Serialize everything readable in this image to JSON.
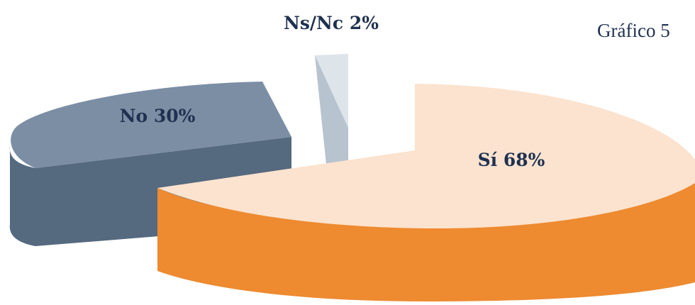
{
  "figure_label": "Gráfico 5",
  "colors": {
    "si_top": "#fbe3cf",
    "si_side": "#ee8a30",
    "no_top": "#7b8ea4",
    "no_side": "#55697f",
    "nsnc_top": "#dde4ea",
    "nsnc_side": "#b7c3cf",
    "label_text": "#1f3150"
  },
  "chart_data": {
    "type": "pie",
    "style": "3d-exploded",
    "title": "",
    "legend": "none",
    "slices": [
      {
        "category": "Sí",
        "value": 68,
        "label": "Sí 68%",
        "color": "#ee8a30"
      },
      {
        "category": "No",
        "value": 30,
        "label": "No 30%",
        "color": "#55697f"
      },
      {
        "category": "Ns/Nc",
        "value": 2,
        "label": "Ns/Nc 2%",
        "color": "#b7c3cf"
      }
    ]
  }
}
